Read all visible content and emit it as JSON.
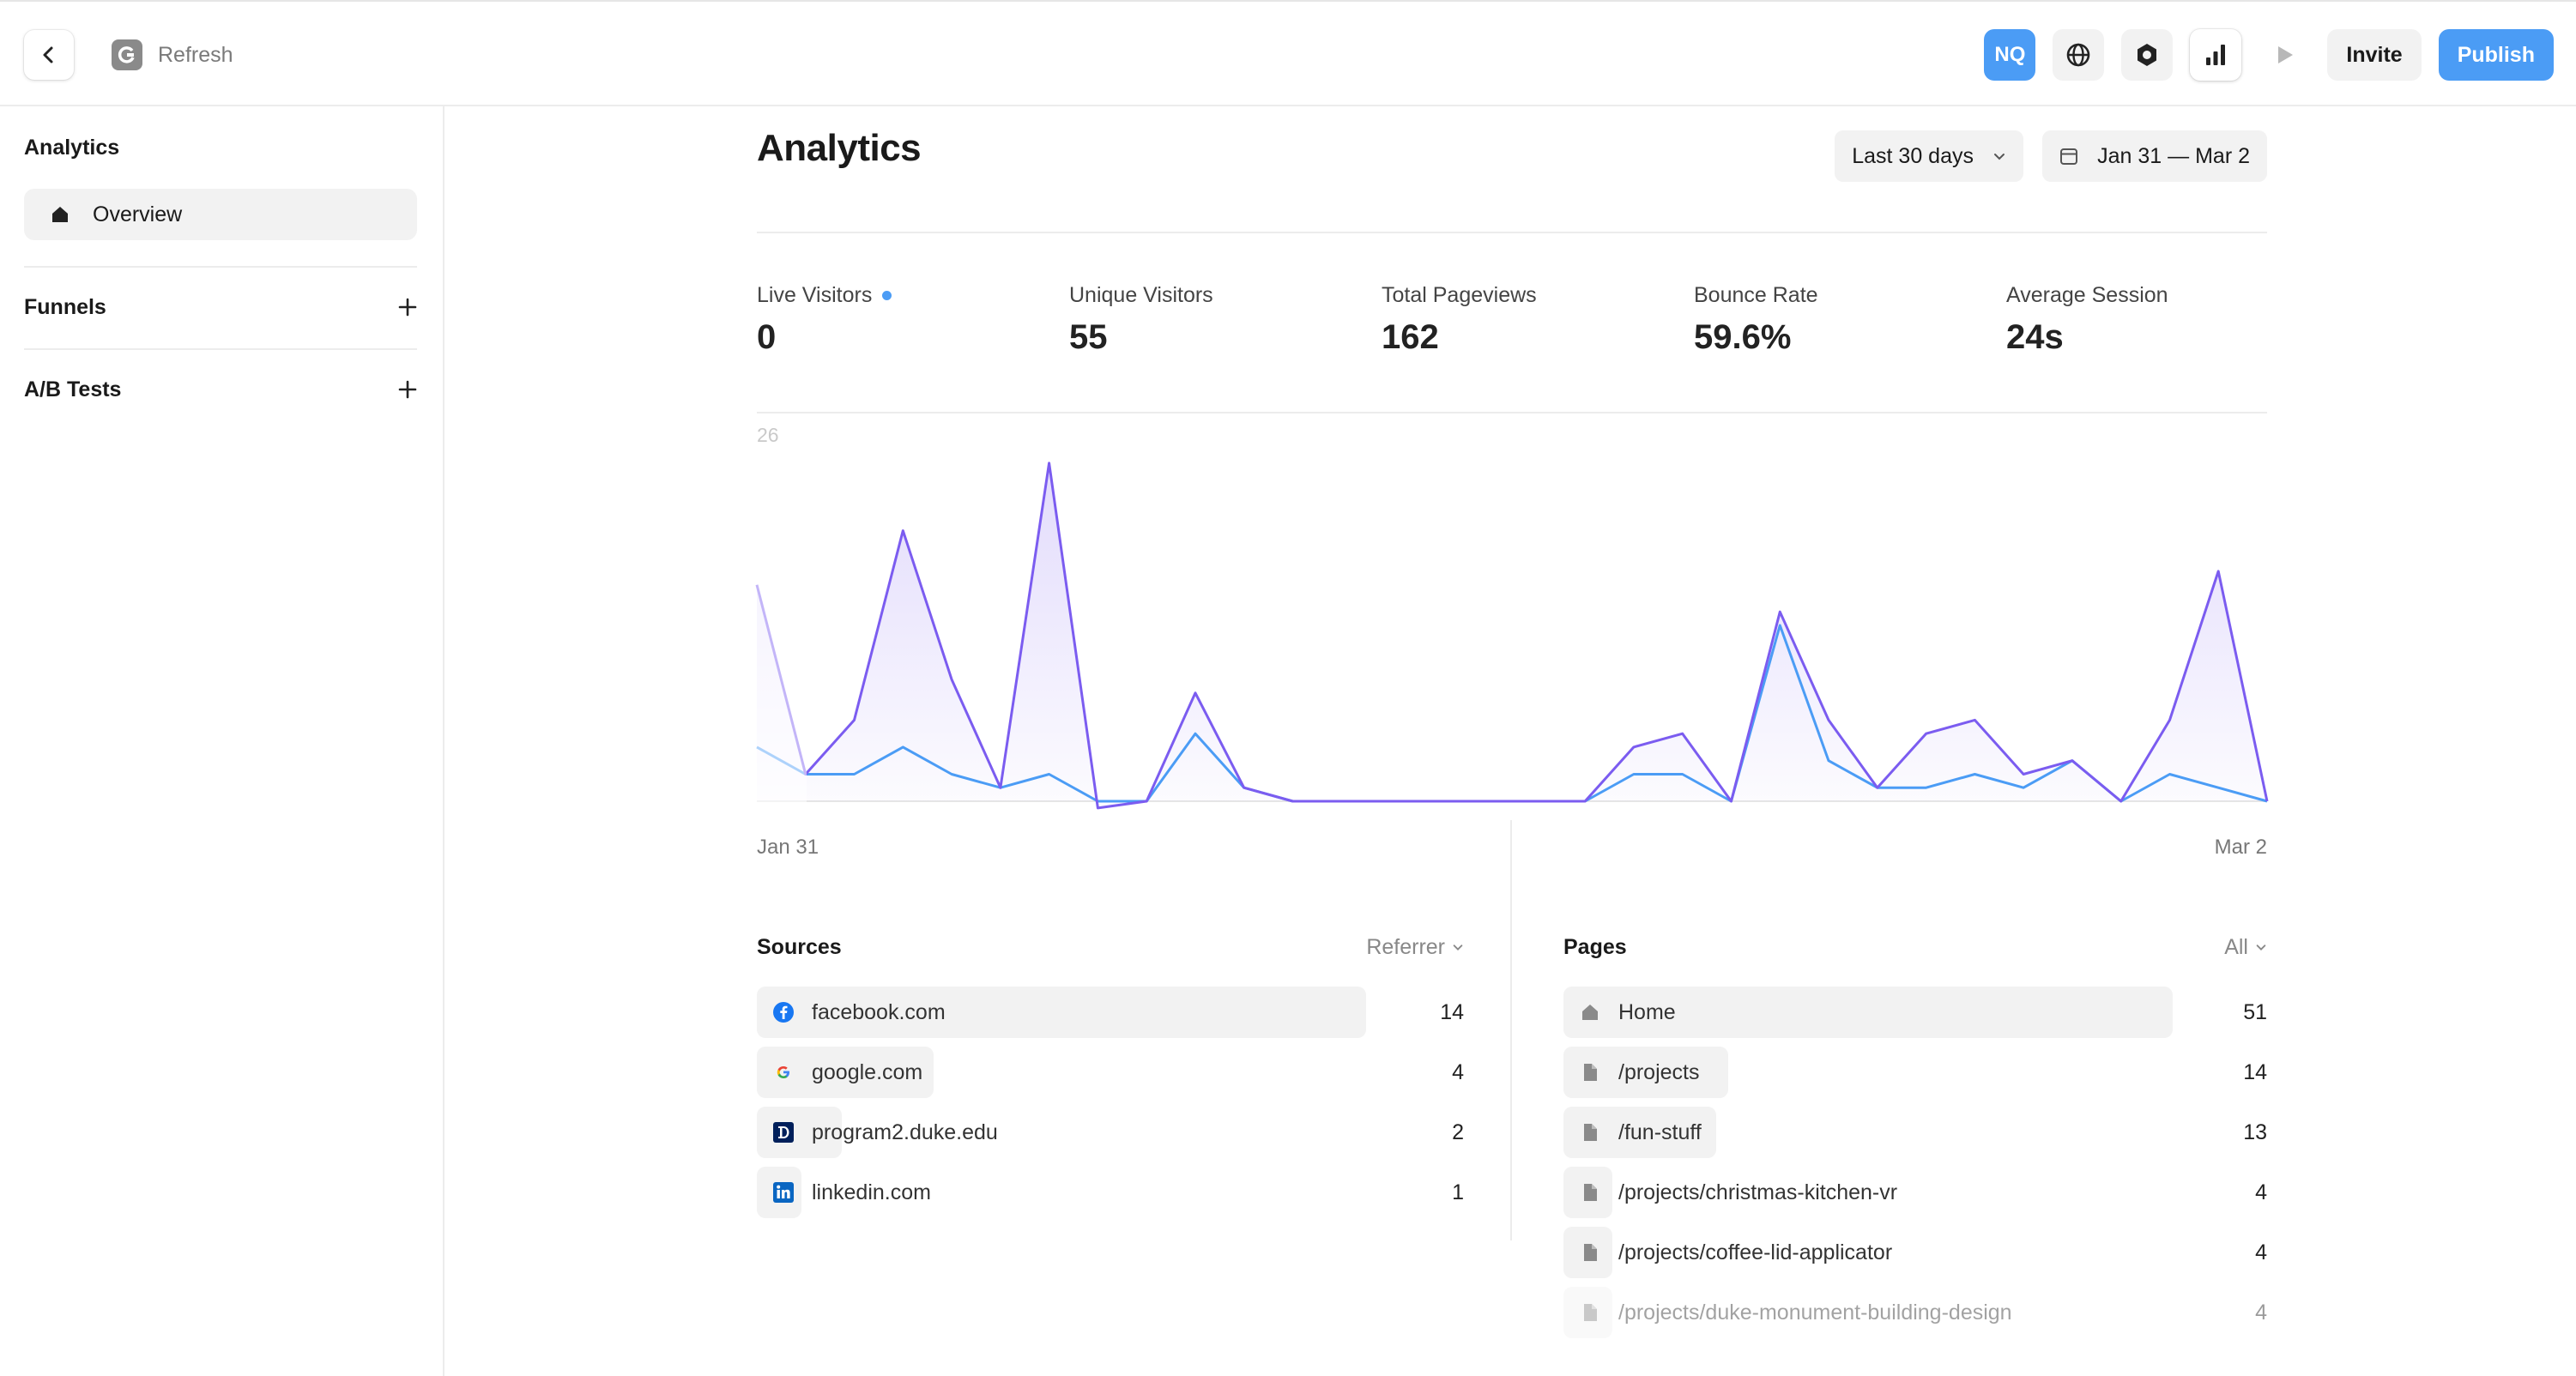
{
  "topbar": {
    "refresh_label": "Refresh",
    "avatar_initials": "NQ",
    "invite_label": "Invite",
    "publish_label": "Publish"
  },
  "sidebar": {
    "title": "Analytics",
    "overview_label": "Overview",
    "funnels_label": "Funnels",
    "ab_tests_label": "A/B Tests"
  },
  "main": {
    "title": "Analytics",
    "range_label": "Last 30 days",
    "date_label": "Jan 31 — Mar 2"
  },
  "stats": [
    {
      "label": "Live Visitors",
      "value": "0"
    },
    {
      "label": "Unique Visitors",
      "value": "55"
    },
    {
      "label": "Total Pageviews",
      "value": "162"
    },
    {
      "label": "Bounce Rate",
      "value": "59.6%"
    },
    {
      "label": "Average Session",
      "value": "24s"
    }
  ],
  "chart_data": {
    "type": "area",
    "x_start": "Jan 31",
    "x_end": "Mar 2",
    "y_max_label": "26",
    "ylim": [
      0,
      26
    ],
    "series": [
      {
        "values": [
          16,
          2,
          6,
          20,
          9,
          1,
          25,
          -0.5,
          0,
          8,
          1,
          0,
          0,
          0,
          0,
          0,
          0,
          0,
          4,
          5,
          0,
          14,
          6,
          1,
          5,
          6,
          2,
          3,
          0,
          6,
          17,
          0
        ],
        "color": "#7b5cf0"
      },
      {
        "values": [
          4,
          2,
          2,
          4,
          2,
          1,
          2,
          0,
          0,
          5,
          1,
          0,
          0,
          0,
          0,
          0,
          0,
          0,
          2,
          2,
          0,
          13,
          3,
          1,
          1,
          2,
          1,
          3,
          0,
          2,
          1,
          0
        ],
        "color": "#4b9cf5"
      }
    ]
  },
  "sources": {
    "title": "Sources",
    "filter_label": "Referrer",
    "rows": [
      {
        "label": "facebook.com",
        "count": "14",
        "icon": "facebook-icon",
        "frac": 1.0
      },
      {
        "label": "google.com",
        "count": "4",
        "icon": "google-icon",
        "frac": 0.29
      },
      {
        "label": "program2.duke.edu",
        "count": "2",
        "icon": "duke-icon",
        "frac": 0.14
      },
      {
        "label": "linkedin.com",
        "count": "1",
        "icon": "linkedin-icon",
        "frac": 0.07
      }
    ]
  },
  "pages": {
    "title": "Pages",
    "filter_label": "All",
    "rows": [
      {
        "label": "Home",
        "count": "51",
        "icon": "home-icon",
        "frac": 1.0
      },
      {
        "label": "/projects",
        "count": "14",
        "icon": "file-icon",
        "frac": 0.27
      },
      {
        "label": "/fun-stuff",
        "count": "13",
        "icon": "file-icon",
        "frac": 0.25
      },
      {
        "label": "/projects/christmas-kitchen-vr",
        "count": "4",
        "icon": "file-icon",
        "frac": 0.08
      },
      {
        "label": "/projects/coffee-lid-applicator",
        "count": "4",
        "icon": "file-icon",
        "frac": 0.08
      },
      {
        "label": "/projects/duke-monument-building-design",
        "count": "4",
        "icon": "file-icon",
        "frac": 0.08
      }
    ]
  }
}
